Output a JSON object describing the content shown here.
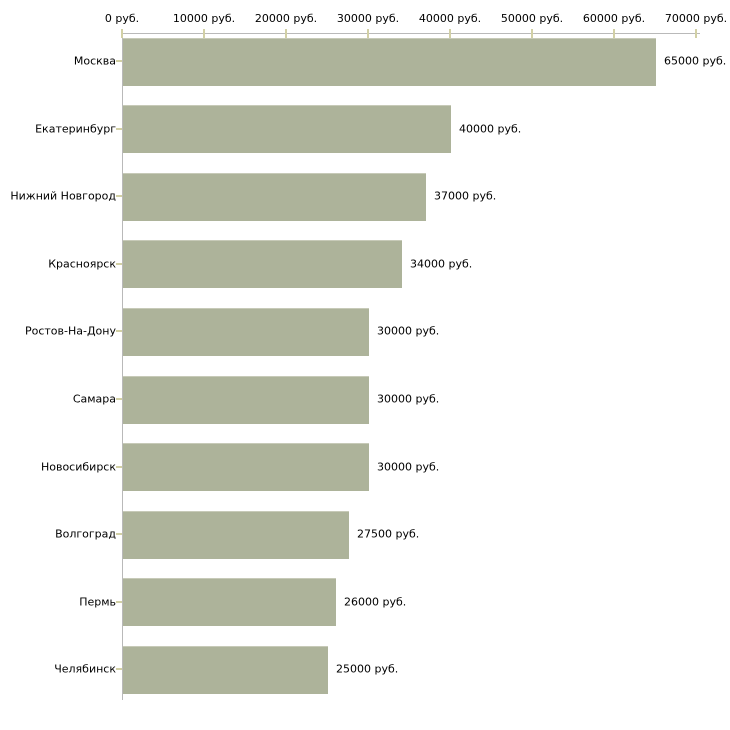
{
  "chart_data": {
    "type": "bar",
    "orientation": "horizontal",
    "title": "",
    "xlabel": "",
    "ylabel": "",
    "unit": "руб.",
    "categories": [
      "Москва",
      "Екатеринбург",
      "Нижний Новгород",
      "Красноярск",
      "Ростов-На-Дону",
      "Самара",
      "Новосибирск",
      "Волгоград",
      "Пермь",
      "Челябинск"
    ],
    "values": [
      65000,
      40000,
      37000,
      34000,
      30000,
      30000,
      30000,
      27500,
      26000,
      25000
    ],
    "value_labels": [
      "65000 руб.",
      "40000 руб.",
      "37000 руб.",
      "34000 руб.",
      "30000 руб.",
      "30000 руб.",
      "30000 руб.",
      "27500 руб.",
      "26000 руб.",
      "25000 руб."
    ],
    "x_ticks": [
      0,
      10000,
      20000,
      30000,
      40000,
      50000,
      60000,
      70000
    ],
    "x_tick_labels": [
      "0 руб.",
      "10000 руб.",
      "20000 руб.",
      "30000 руб.",
      "40000 руб.",
      "50000 руб.",
      "60000 руб.",
      "70000 руб."
    ],
    "xlim": [
      0,
      70000
    ],
    "grid": false,
    "legend": false,
    "colors": {
      "bar": "#adb39a",
      "axis": "#b9b9b9",
      "tick": "#d2d0a5",
      "text": "#000000",
      "background": "#ffffff"
    }
  }
}
